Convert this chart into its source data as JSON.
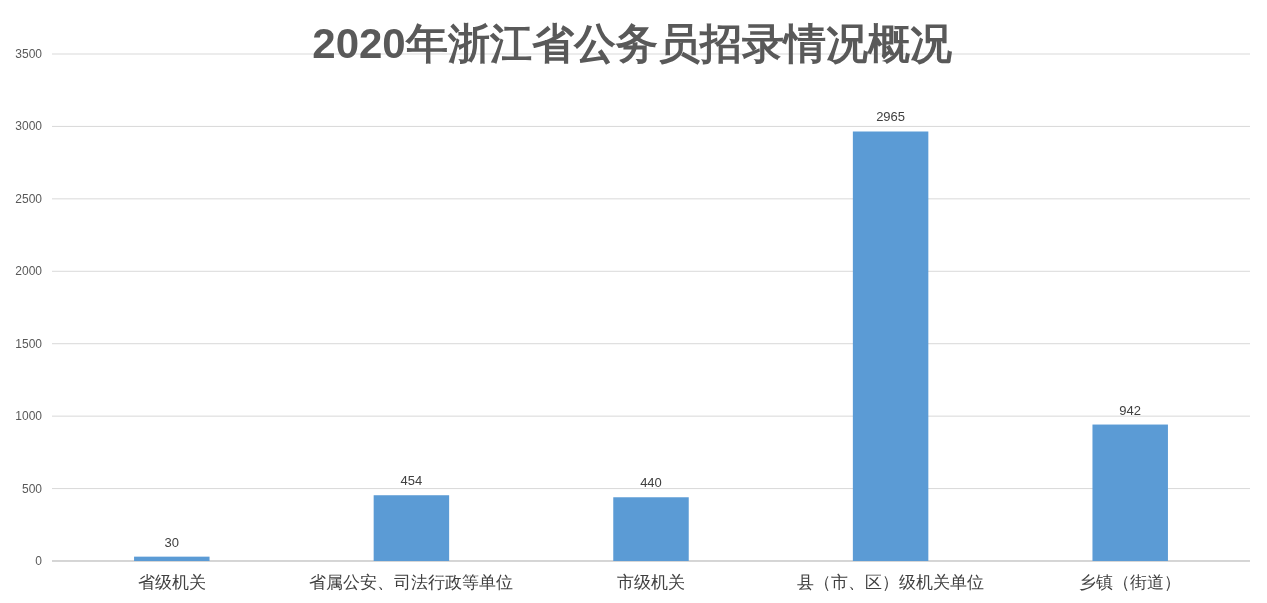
{
  "chart_data": {
    "type": "bar",
    "title": "2020年浙江省公务员招录情况概况",
    "categories": [
      "省级机关",
      "省属公安、司法行政等单位",
      "市级机关",
      "县（市、区）级机关单位",
      "乡镇（街道）"
    ],
    "values": [
      30,
      454,
      440,
      2965,
      942
    ],
    "color": "#5b9bd5",
    "ylim": [
      0,
      3500
    ],
    "yticks": [
      0,
      500,
      1000,
      1500,
      2000,
      2500,
      3000,
      3500
    ],
    "grid": "y",
    "data_labels": true
  }
}
